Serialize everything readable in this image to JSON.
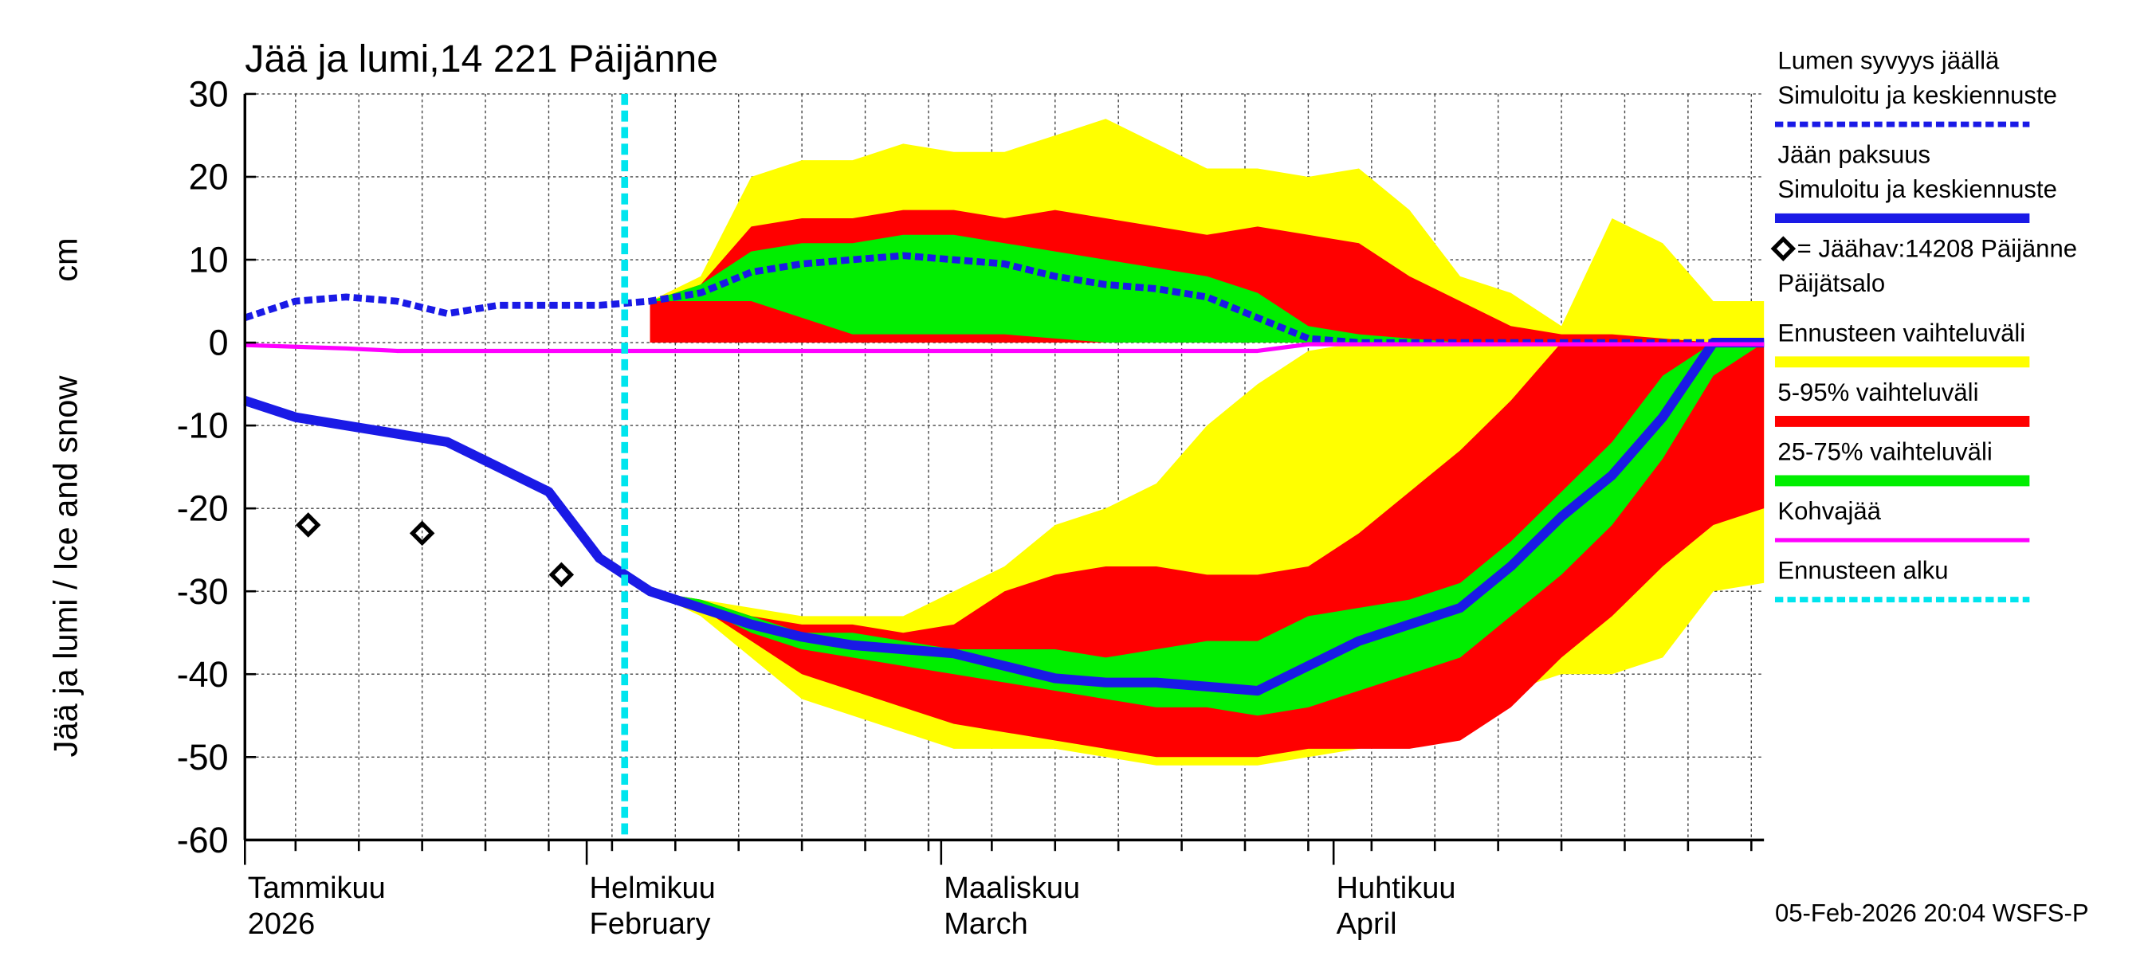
{
  "chart_data": {
    "type": "ice-forecast",
    "title": "Jää ja lumi,14 221 Päijänne",
    "ylabel": "Jää ja lumi / Ice and snow",
    "yunit": "cm",
    "timestamp": "05-Feb-2026 20:04 WSFS-P",
    "ylim": [
      -60,
      30
    ],
    "yticks": [
      30,
      20,
      10,
      0,
      -10,
      -20,
      -30,
      -40,
      -50,
      -60
    ],
    "xlim": [
      4,
      124
    ],
    "xticks": [
      {
        "value": 4,
        "label": "Tammikuu"
      },
      {
        "value": 31,
        "label": "Helmikuu"
      },
      {
        "value": 59,
        "label": "Maaliskuu"
      },
      {
        "value": 90,
        "label": "Huhtikuu"
      }
    ],
    "xtick_labels_line2": [
      "2026",
      "February",
      "March",
      "April"
    ],
    "xgrid": [
      8,
      13,
      18,
      23,
      28,
      33,
      38,
      43,
      48,
      53,
      58,
      63,
      68,
      73,
      78,
      83,
      88,
      93,
      98,
      103,
      108,
      113,
      118,
      123
    ],
    "grid": true,
    "x": [
      4,
      8,
      12,
      16,
      20,
      24,
      28,
      32,
      36,
      40,
      44,
      48,
      52,
      56,
      60,
      64,
      68,
      72,
      76,
      80,
      84,
      88,
      92,
      96,
      100,
      104,
      108,
      112,
      116,
      120,
      124
    ],
    "series": [
      {
        "name": "Lumen syvyys jäällä",
        "name_line2": "Simuloitu ja keskiennuste",
        "kind": "line",
        "style": "dashed",
        "color": "#1a1ae6",
        "values": [
          3,
          5,
          5.5,
          5,
          3.5,
          4.5,
          4.5,
          4.5,
          5,
          6,
          8.5,
          9.5,
          10,
          10.5,
          10,
          9.5,
          8,
          7,
          6.5,
          5.5,
          3,
          0.5,
          0,
          0,
          0,
          0,
          0,
          0,
          0,
          0,
          0
        ]
      },
      {
        "name": "Jään paksuus",
        "name_line2": "Simuloitu ja keskiennuste",
        "kind": "line",
        "style": "solid",
        "color": "#1a1ae6",
        "values": [
          -7,
          -9,
          -10,
          -11,
          -12,
          -15,
          -18,
          -26,
          -30,
          -32,
          -34,
          -35.5,
          -36.5,
          -37,
          -37.5,
          -39,
          -40.5,
          -41,
          -41,
          -41.5,
          -42,
          -39,
          -36,
          -34,
          -32,
          -27,
          -21,
          -16,
          -9,
          0,
          0
        ]
      },
      {
        "name": "= Jäähav:14208 Päijänne",
        "name_line2": "Päijätsalo",
        "kind": "marker",
        "color": "#000000",
        "x": [
          9,
          18,
          29
        ],
        "values": [
          -22,
          -23,
          -28
        ]
      },
      {
        "name": "Ennusteen vaihteluväli",
        "kind": "band",
        "color": "#ffff00",
        "snow_high": [
          null,
          null,
          null,
          null,
          null,
          null,
          null,
          null,
          5,
          8,
          20,
          22,
          22,
          24,
          23,
          23,
          25,
          27,
          24,
          21,
          21,
          20,
          21,
          16,
          8,
          6,
          2,
          15,
          12,
          5,
          5
        ],
        "snow_low": [
          null,
          null,
          null,
          null,
          null,
          null,
          null,
          null,
          0,
          0,
          0,
          0,
          0,
          0,
          0,
          0,
          0,
          0,
          0,
          0,
          0,
          0,
          0,
          0,
          0,
          0,
          0,
          0,
          0,
          0,
          0
        ],
        "ice_high": [
          null,
          null,
          null,
          null,
          null,
          null,
          null,
          null,
          -30,
          -31,
          -32,
          -33,
          -33,
          -33,
          -30,
          -27,
          -22,
          -20,
          -17,
          -10,
          -5,
          -1,
          0,
          0,
          0,
          0,
          0,
          0,
          0,
          0,
          0
        ],
        "ice_low": [
          null,
          null,
          null,
          null,
          null,
          null,
          null,
          null,
          -30,
          -33,
          -38,
          -43,
          -45,
          -47,
          -49,
          -49,
          -49,
          -50,
          -51,
          -51,
          -51,
          -50,
          -49,
          -48,
          -46,
          -42,
          -40,
          -40,
          -38,
          -30,
          -29
        ]
      },
      {
        "name": "5-95% vaihteluväli",
        "kind": "band",
        "color": "#ff0000",
        "snow_high": [
          null,
          null,
          null,
          null,
          null,
          null,
          null,
          null,
          5,
          7,
          14,
          15,
          15,
          16,
          16,
          15,
          16,
          15,
          14,
          13,
          14,
          13,
          12,
          8,
          5,
          2,
          1,
          1,
          0.5,
          0,
          0
        ],
        "snow_low": [
          null,
          null,
          null,
          null,
          null,
          null,
          null,
          null,
          0,
          0,
          0,
          0,
          0,
          0,
          0,
          0,
          0,
          0,
          0,
          0,
          0,
          0,
          0,
          0,
          0,
          0,
          0,
          0,
          0,
          0,
          0
        ],
        "ice_high": [
          null,
          null,
          null,
          null,
          null,
          null,
          null,
          null,
          -30,
          -31,
          -33,
          -34,
          -34,
          -35,
          -34,
          -30,
          -28,
          -27,
          -27,
          -28,
          -28,
          -27,
          -23,
          -18,
          -13,
          -7,
          0,
          0,
          0,
          0,
          0
        ],
        "ice_low": [
          null,
          null,
          null,
          null,
          null,
          null,
          null,
          null,
          -30,
          -32,
          -36,
          -40,
          -42,
          -44,
          -46,
          -47,
          -48,
          -49,
          -50,
          -50,
          -50,
          -49,
          -49,
          -49,
          -48,
          -44,
          -38,
          -33,
          -27,
          -22,
          -20
        ]
      },
      {
        "name": "25-75% vaihteluväli",
        "kind": "band",
        "color": "#00ee00",
        "snow_high": [
          null,
          null,
          null,
          null,
          null,
          null,
          null,
          null,
          5,
          7,
          11,
          12,
          12,
          13,
          13,
          12,
          11,
          10,
          9,
          8,
          6,
          2,
          1,
          0.5,
          0,
          0,
          0,
          0,
          0,
          0,
          0
        ],
        "snow_low": [
          null,
          null,
          null,
          null,
          null,
          null,
          null,
          null,
          5,
          5,
          5,
          3,
          1,
          1,
          1,
          1,
          0.5,
          0,
          0,
          0,
          0,
          0,
          0,
          0,
          0,
          0,
          0,
          0,
          0,
          0,
          0
        ],
        "ice_high": [
          null,
          null,
          null,
          null,
          null,
          null,
          null,
          null,
          -30,
          -31,
          -33,
          -35,
          -35,
          -36,
          -37,
          -37,
          -37,
          -38,
          -37,
          -36,
          -36,
          -33,
          -32,
          -31,
          -29,
          -24,
          -18,
          -12,
          -4,
          0,
          0
        ],
        "ice_low": [
          null,
          null,
          null,
          null,
          null,
          null,
          null,
          null,
          -30,
          -32,
          -35,
          -37,
          -38,
          -39,
          -40,
          -41,
          -42,
          -43,
          -44,
          -44,
          -45,
          -44,
          -42,
          -40,
          -38,
          -33,
          -28,
          -22,
          -14,
          -4,
          0
        ]
      },
      {
        "name": "Kohvajää",
        "kind": "line",
        "style": "solid",
        "color": "#ff00ff",
        "values": [
          -0.3,
          -0.5,
          -0.7,
          -1,
          -1,
          -1,
          -1,
          -1,
          -1,
          -1,
          -1,
          -1,
          -1,
          -1,
          -1,
          -1,
          -1,
          -1,
          -1,
          -1,
          -1,
          -0.2,
          -0.2,
          -0.2,
          -0.2,
          -0.2,
          -0.2,
          -0.2,
          -0.2,
          -0.2,
          -0.2
        ]
      },
      {
        "name": "Ennusteen alku",
        "kind": "vline",
        "style": "dashed",
        "color": "#00e5ee",
        "x": 34
      }
    ]
  }
}
